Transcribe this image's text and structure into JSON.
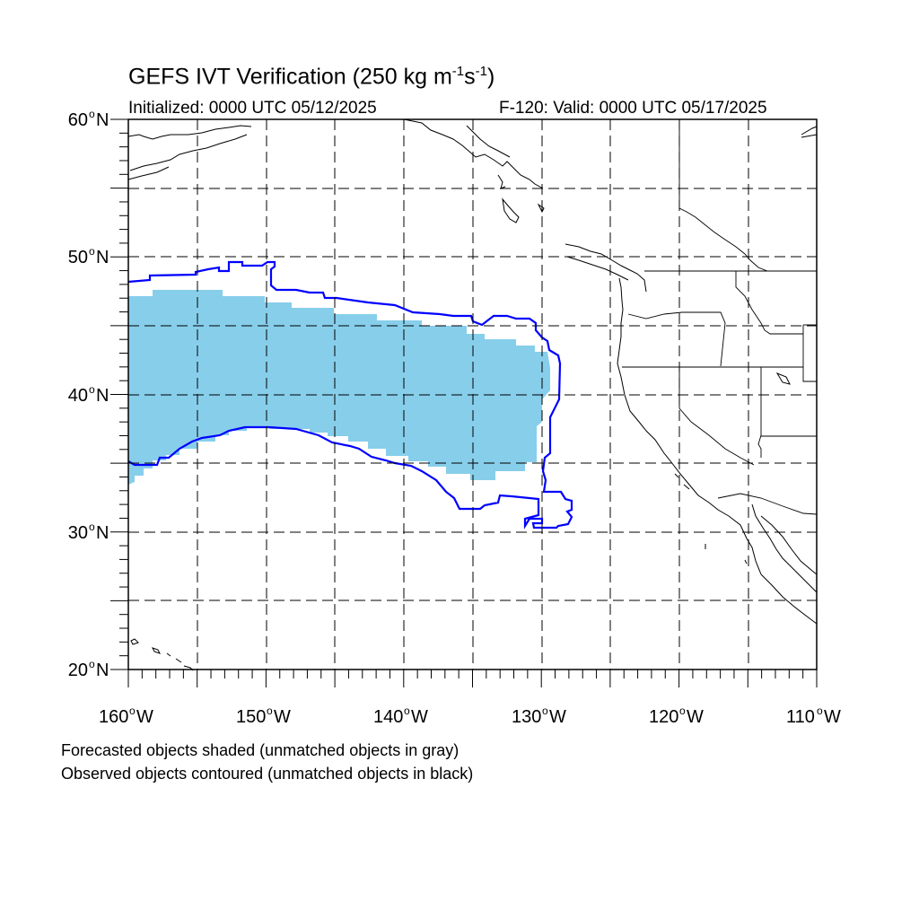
{
  "title": {
    "main": "GEFS IVT Verification (250 kg m",
    "sup1": "-1",
    "mid": "s",
    "sup2": "-1",
    "end": ")"
  },
  "subtitle_left": "Initialized: 0000 UTC 05/12/2025",
  "subtitle_right": "F-120: Valid: 0000 UTC 05/17/2025",
  "footer": [
    "Forecasted objects shaded (unmatched objects in gray)",
    "Observed objects contoured (unmatched objects in black)"
  ],
  "map": {
    "lon_range": [
      -160,
      -110
    ],
    "lat_range": [
      20,
      60
    ],
    "lat_labels": [
      {
        "deg": "60",
        "suffix": "N"
      },
      {
        "deg": "50",
        "suffix": "N"
      },
      {
        "deg": "40",
        "suffix": "N"
      },
      {
        "deg": "30",
        "suffix": "N"
      },
      {
        "deg": "20",
        "suffix": "N"
      }
    ],
    "lon_labels": [
      {
        "deg": "160",
        "suffix": "W"
      },
      {
        "deg": "150",
        "suffix": "W"
      },
      {
        "deg": "140",
        "suffix": "W"
      },
      {
        "deg": "130",
        "suffix": "W"
      },
      {
        "deg": "120",
        "suffix": "W"
      },
      {
        "deg": "110",
        "suffix": "W"
      }
    ],
    "colors": {
      "forecast_fill": "#87ceeb",
      "observed_contour": "#0000ff",
      "coastline": "#000000",
      "grid": "#000000"
    },
    "grid": "dashed every 5 degrees"
  }
}
